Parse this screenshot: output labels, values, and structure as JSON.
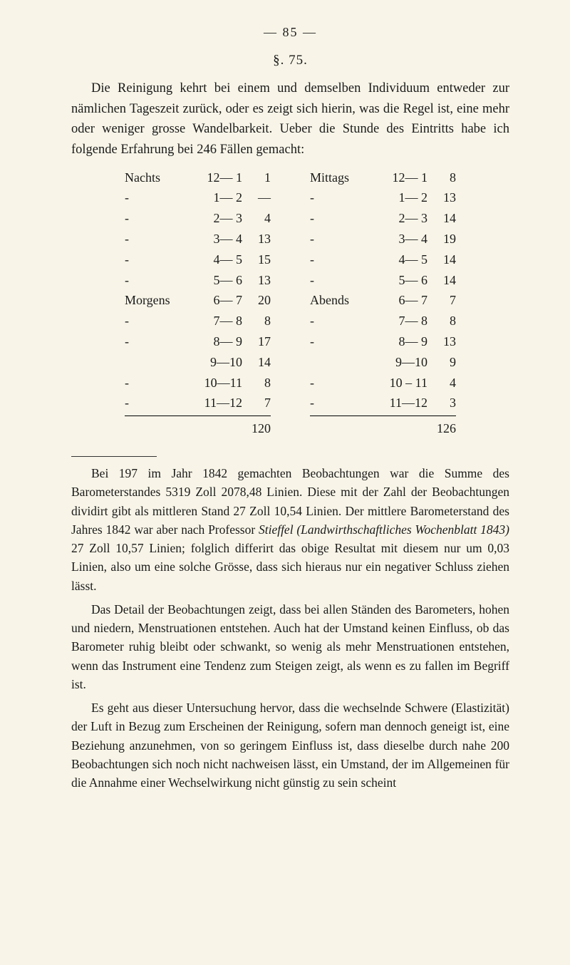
{
  "page_number": "— 85 —",
  "section_heading": "§. 75.",
  "paragraph1": "Die Reinigung kehrt bei einem und demselben Individuum ent­weder zur nämlichen Tageszeit zurück, oder es zeigt sich hierin, was die Regel ist, eine mehr oder weniger grosse Wandelbarkeit. Ueber die Stunde des Eintritts habe ich folgende Erfahrung bei 246 Fällen gemacht:",
  "table_left": {
    "rows": [
      {
        "label": "Nachts",
        "range": "12— 1",
        "val": "1"
      },
      {
        "label": "-",
        "range": "1— 2",
        "val": "—"
      },
      {
        "label": "-",
        "range": "2— 3",
        "val": "4"
      },
      {
        "label": "-",
        "range": "3— 4",
        "val": "13"
      },
      {
        "label": "-",
        "range": "4— 5",
        "val": "15"
      },
      {
        "label": "-",
        "range": "5— 6",
        "val": "13"
      },
      {
        "label": "Morgens",
        "range": "6— 7",
        "val": "20"
      },
      {
        "label": "-",
        "range": "7— 8",
        "val": "8"
      },
      {
        "label": "-",
        "range": "8— 9",
        "val": "17"
      },
      {
        "label": "",
        "range": "9—10",
        "val": "14"
      },
      {
        "label": "-",
        "range": "10—11",
        "val": "8"
      },
      {
        "label": "-",
        "range": "11—12",
        "val": "7"
      }
    ],
    "sum": "120"
  },
  "table_right": {
    "rows": [
      {
        "label": "Mittags",
        "range": "12— 1",
        "val": "8"
      },
      {
        "label": "-",
        "range": "1— 2",
        "val": "13"
      },
      {
        "label": "-",
        "range": "2— 3",
        "val": "14"
      },
      {
        "label": "-",
        "range": "3— 4",
        "val": "19"
      },
      {
        "label": "-",
        "range": "4— 5",
        "val": "14"
      },
      {
        "label": "-",
        "range": "5— 6",
        "val": "14"
      },
      {
        "label": "Abends",
        "range": "6— 7",
        "val": "7"
      },
      {
        "label": "-",
        "range": "7— 8",
        "val": "8"
      },
      {
        "label": "-",
        "range": "8— 9",
        "val": "13"
      },
      {
        "label": "",
        "range": "9—10",
        "val": "9"
      },
      {
        "label": "-",
        "range": "10 – 11",
        "val": "4"
      },
      {
        "label": "-",
        "range": "11—12",
        "val": "3"
      }
    ],
    "sum": "126"
  },
  "footnote": {
    "p1_a": "Bei 197 im Jahr 1842 gemachten Beobachtungen war die Summe des Barometerstandes 5319 Zoll 2078,48 Linien. Diese mit der Zahl der Beobachtungen dividirt gibt als mittleren Stand 27 Zoll 10,54 Linien. Der mittlere Barometerstand des Jahres 1842 war aber nach Professor ",
    "p1_em": "Stieffel (Landwirthschaftliches Wochenblatt 1843)",
    "p1_b": " 27 Zoll 10,57 Linien; folglich differirt das obige Resultat mit diesem nur um 0,03 Linien, also um eine solche Grösse, dass sich hieraus nur ein negativer Schluss ziehen lässt.",
    "p2": "Das Detail der Beobachtungen zeigt, dass bei allen Ständen des Baro­meters, hohen und niedern, Menstruationen entstehen. Auch hat der Umstand keinen Einfluss, ob das Barometer ruhig bleibt oder schwankt, so wenig als mehr Menstruationen entstehen, wenn das Instrument eine Tendenz zum Steigen zeigt, als wenn es zu fallen im Begriff ist.",
    "p3": "Es geht aus dieser Untersuchung hervor, dass die wechselnde Schwere (Elastizität) der Luft in Bezug zum Erscheinen der Reinigung, sofern man dennoch geneigt ist, eine Beziehung anzunehmen, von so geringem Einfluss ist, dass dieselbe durch nahe 200 Beobachtungen sich noch nicht nachweisen lässt, ein Umstand, der im Allgemeinen für die Annahme einer Wechselwirkung nicht günstig zu sein scheint"
  }
}
